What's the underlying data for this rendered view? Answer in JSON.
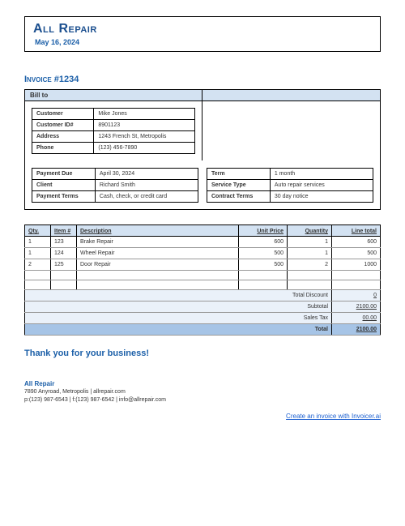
{
  "header": {
    "company": "All Repair",
    "date": "May 16, 2024"
  },
  "invoice": {
    "title": "Invoice #1234",
    "billto_label": "Bill to"
  },
  "customer": {
    "customer_k": "Customer",
    "customer_v": "Mike Jones",
    "id_k": "Customer ID#",
    "id_v": "8901123",
    "address_k": "Address",
    "address_v": "1243 French St, Metropolis",
    "phone_k": "Phone",
    "phone_v": "(123) 456-7890"
  },
  "payment": {
    "due_k": "Payment Due",
    "due_v": "April 30, 2024",
    "client_k": "Client",
    "client_v": "Richard Smith",
    "terms_k": "Payment Terms",
    "terms_v": "Cash, check, or credit card"
  },
  "contract": {
    "term_k": "Term",
    "term_v": "1 month",
    "service_k": "Service Type",
    "service_v": "Auto repair services",
    "cterms_k": "Contract Terms",
    "cterms_v": "30 day notice"
  },
  "items": {
    "headers": {
      "qty": "Qty.",
      "item": "Item #",
      "desc": "Description",
      "price": "Unit Price",
      "quantity": "Quantity",
      "total": "Line total"
    },
    "rows": [
      {
        "qty": "1",
        "item": "123",
        "desc": "Brake Repair",
        "price": "600",
        "quantity": "1",
        "total": "600"
      },
      {
        "qty": "1",
        "item": "124",
        "desc": "Wheel Repair",
        "price": "500",
        "quantity": "1",
        "total": "500"
      },
      {
        "qty": "2",
        "item": "125",
        "desc": "Door Repair",
        "price": "500",
        "quantity": "2",
        "total": "1000"
      }
    ],
    "summary": {
      "discount_k": "Total Discount",
      "discount_v": "0",
      "subtotal_k": "Subtotal",
      "subtotal_v": "2100.00",
      "tax_k": "Sales Tax",
      "tax_v": "00.00",
      "total_k": "Total",
      "total_v": "2100.00"
    }
  },
  "thanks": "Thank you for your business!",
  "footer": {
    "name": "All Repair",
    "addr": "7890 Anyroad, Metropolis | allrepair.com",
    "contact": "p:(123) 987-6543  |  f:(123) 987-6542  |  info@allrepair.com"
  },
  "link": "Create an invoice with Invoicer.ai",
  "colors": {
    "brand": "#1b5fa8",
    "header_bg": "#d3e2f2",
    "summary_bg": "#eaf1f9",
    "total_bg": "#a6c4e6"
  }
}
